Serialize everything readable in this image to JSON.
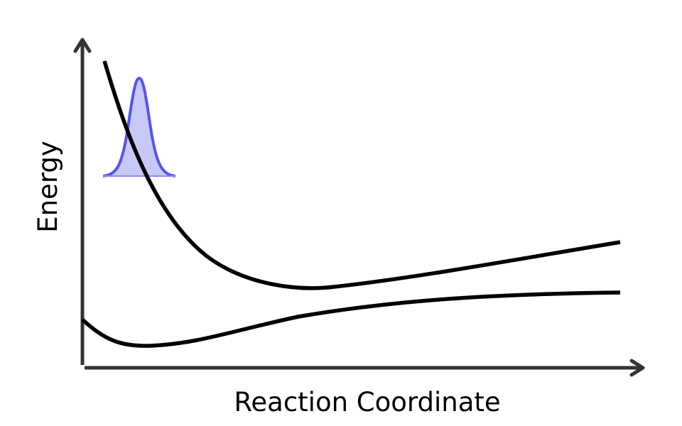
{
  "diagram": {
    "xlabel": "Reaction Coordinate",
    "ylabel": "Energy",
    "curves": [
      {
        "name": "",
        "role": "excited-state-potential"
      },
      {
        "name": "",
        "role": "ground-state-potential"
      }
    ],
    "wavepacket": {
      "shape": "gaussian"
    },
    "colors": {
      "axes": "#333333",
      "curves": "#000000",
      "wavepacket_line": "#5555ee",
      "wavepacket_fill": "#c8c8f6"
    }
  }
}
